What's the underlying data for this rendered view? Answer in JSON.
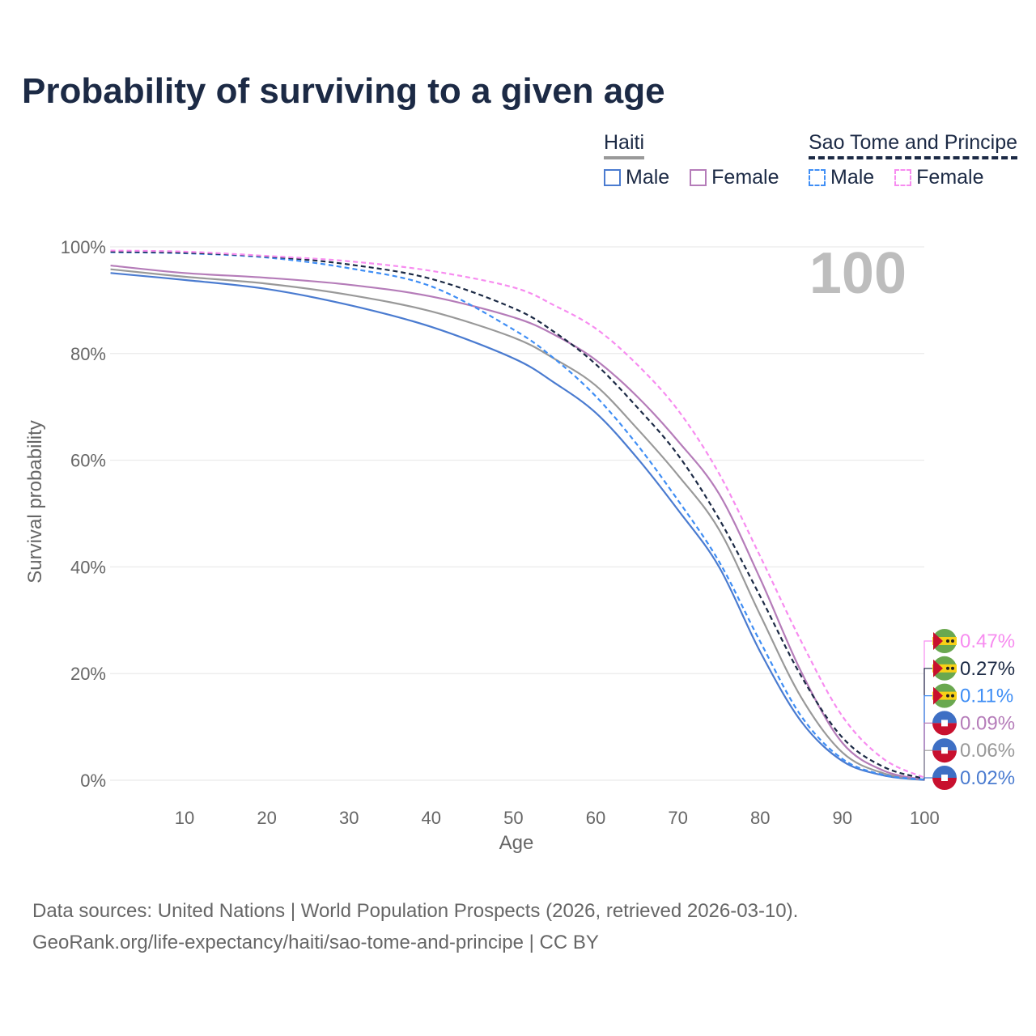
{
  "title": "Probability of surviving to a given age",
  "legend": {
    "groups": [
      {
        "name": "Haiti",
        "items": [
          {
            "label": "Male",
            "color": "#4a7bd0",
            "dashed": false
          },
          {
            "label": "Female",
            "color": "#b57cb9",
            "dashed": false
          }
        ]
      },
      {
        "name": "Sao Tome and Principe",
        "items": [
          {
            "label": "Male",
            "color": "#3f8ef5",
            "dashed": true
          },
          {
            "label": "Female",
            "color": "#f78cf0",
            "dashed": true
          }
        ]
      }
    ]
  },
  "chart_data": {
    "type": "line",
    "xlabel": "Age",
    "ylabel": "Survival probability",
    "xlim": [
      0,
      100
    ],
    "ylim": [
      0,
      100
    ],
    "xticks": [
      10,
      20,
      30,
      40,
      50,
      60,
      70,
      80,
      90,
      100
    ],
    "yticks": [
      {
        "v": 0,
        "label": "0%"
      },
      {
        "v": 20,
        "label": "20%"
      },
      {
        "v": 40,
        "label": "40%"
      },
      {
        "v": 60,
        "label": "60%"
      },
      {
        "v": 80,
        "label": "80%"
      },
      {
        "v": 100,
        "label": "100%"
      }
    ],
    "current_age_label": "100",
    "x": [
      1,
      10,
      20,
      30,
      40,
      50,
      55,
      60,
      65,
      70,
      75,
      80,
      85,
      90,
      95,
      100
    ],
    "series": [
      {
        "name": "Haiti Male",
        "country": "haiti",
        "color": "#4a7bd0",
        "dashed": false,
        "end_label": "0.02%",
        "values": [
          95.1,
          93.8,
          92.1,
          89.1,
          85.0,
          79.1,
          74.5,
          68.9,
          60.5,
          50.7,
          40.0,
          24.1,
          11.0,
          3.6,
          0.9,
          0.02
        ]
      },
      {
        "name": "Haiti Total",
        "country": "haiti",
        "color": "#999999",
        "dashed": false,
        "end_label": "0.06%",
        "values": [
          95.8,
          94.4,
          93.1,
          91.0,
          87.9,
          83.0,
          79.0,
          74.0,
          66.0,
          57.2,
          47.0,
          31.0,
          15.5,
          5.2,
          1.3,
          0.06
        ]
      },
      {
        "name": "Haiti Female",
        "country": "haiti",
        "color": "#b57cb9",
        "dashed": false,
        "end_label": "0.09%",
        "values": [
          96.5,
          95.1,
          94.2,
          92.9,
          90.7,
          86.8,
          83.5,
          78.8,
          72.0,
          63.6,
          53.7,
          37.8,
          20.3,
          7.0,
          1.8,
          0.09
        ]
      },
      {
        "name": "Sao Tome and Principe Male",
        "country": "stp",
        "color": "#3f8ef5",
        "dashed": true,
        "end_label": "0.11%",
        "values": [
          99.0,
          98.8,
          98.0,
          96.0,
          92.6,
          84.5,
          79.0,
          72.0,
          63.0,
          52.5,
          41.0,
          26.0,
          12.0,
          4.0,
          1.0,
          0.11
        ]
      },
      {
        "name": "Sao Tome and Principe Total",
        "country": "stp",
        "color": "#1c2a45",
        "dashed": true,
        "end_label": "0.27%",
        "values": [
          99.1,
          98.9,
          98.2,
          96.7,
          94.0,
          88.5,
          84.0,
          78.0,
          70.0,
          61.0,
          49.0,
          34.5,
          19.5,
          8.0,
          2.5,
          0.27
        ]
      },
      {
        "name": "Sao Tome and Principe Female",
        "country": "stp",
        "color": "#f78cf0",
        "dashed": true,
        "end_label": "0.47%",
        "values": [
          99.3,
          99.1,
          98.3,
          97.3,
          95.5,
          92.4,
          89.0,
          84.7,
          78.0,
          69.4,
          57.5,
          42.0,
          26.0,
          12.0,
          4.0,
          0.47
        ]
      }
    ]
  },
  "footer": {
    "line1": "Data sources: United Nations | World Population Prospects (2026, retrieved 2026-03-10).",
    "line2": "GeoRank.org/life-expectancy/haiti/sao-tome-and-principe | CC BY"
  }
}
